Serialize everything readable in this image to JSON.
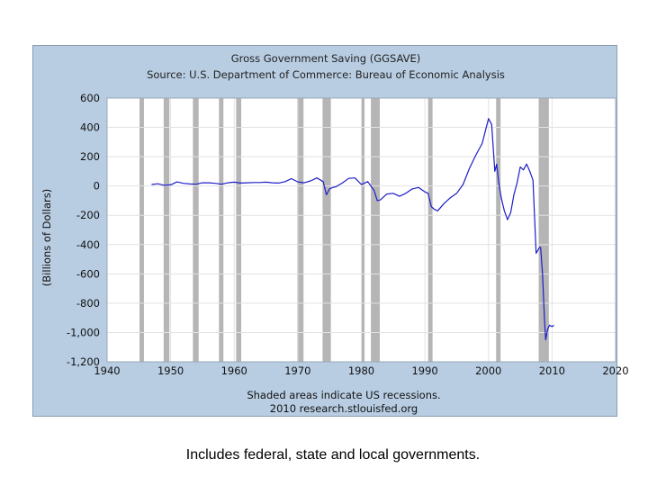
{
  "chart_data": {
    "type": "line",
    "title": "Gross Government Saving (GGSAVE)",
    "subtitle": "Source: U.S. Department of Commerce: Bureau of Economic Analysis",
    "ylabel": "(Billions of Dollars)",
    "xlabel": "",
    "xlim": [
      1940,
      2020
    ],
    "ylim": [
      -1200,
      600
    ],
    "x_ticks": [
      1940,
      1950,
      1960,
      1970,
      1980,
      1990,
      2000,
      2010,
      2020
    ],
    "y_ticks": [
      600,
      400,
      200,
      0,
      -200,
      -400,
      -600,
      -800,
      -1000,
      -1200
    ],
    "y_tick_labels": [
      "600",
      "400",
      "200",
      "0",
      "-200",
      "-400",
      "-600",
      "-800",
      "-1,000",
      "-1,200"
    ],
    "grid": true,
    "line_color": "#1d1dc8",
    "recession_color": "#b5b5b5",
    "recessions": [
      [
        1945.1,
        1945.8
      ],
      [
        1948.9,
        1949.8
      ],
      [
        1953.5,
        1954.4
      ],
      [
        1957.6,
        1958.3
      ],
      [
        1960.3,
        1961.1
      ],
      [
        1969.9,
        1970.9
      ],
      [
        1973.9,
        1975.2
      ],
      [
        1980.0,
        1980.5
      ],
      [
        1981.5,
        1982.9
      ],
      [
        1990.5,
        1991.2
      ],
      [
        2001.2,
        2001.9
      ],
      [
        2007.9,
        2009.5
      ]
    ],
    "series": [
      {
        "x": [
          1947,
          1948,
          1949,
          1950,
          1951,
          1952,
          1953,
          1954,
          1955,
          1956,
          1957,
          1958,
          1959,
          1960,
          1961,
          1962,
          1963,
          1964,
          1965,
          1966,
          1967,
          1968,
          1969,
          1970,
          1971,
          1972,
          1973,
          1974,
          1974.5,
          1975,
          1975.5,
          1976,
          1977,
          1978,
          1979,
          1980,
          1981,
          1982,
          1982.5,
          1983,
          1984,
          1985,
          1986,
          1987,
          1988,
          1989,
          1990,
          1990.5,
          1991,
          1991.5,
          1992,
          1993,
          1994,
          1995,
          1996,
          1997,
          1998,
          1999,
          2000,
          2000.5,
          2001,
          2001.3,
          2001.6,
          2002,
          2002.5,
          2003,
          2003.5,
          2004,
          2004.5,
          2005,
          2005.5,
          2006,
          2006.5,
          2007,
          2007.5,
          2008,
          2008.2,
          2008.5,
          2008.8,
          2009,
          2009.3,
          2009.6,
          2010,
          2010.3
        ],
        "y": [
          10,
          15,
          5,
          8,
          28,
          18,
          14,
          12,
          22,
          22,
          18,
          12,
          22,
          26,
          20,
          22,
          24,
          24,
          26,
          22,
          20,
          30,
          50,
          28,
          22,
          35,
          55,
          30,
          -60,
          -20,
          -10,
          -5,
          20,
          52,
          55,
          10,
          30,
          -30,
          -100,
          -95,
          -55,
          -50,
          -70,
          -50,
          -20,
          -10,
          -40,
          -50,
          -140,
          -160,
          -170,
          -120,
          -80,
          -50,
          10,
          120,
          210,
          290,
          460,
          420,
          100,
          150,
          30,
          -80,
          -170,
          -230,
          -180,
          -60,
          20,
          130,
          110,
          150,
          100,
          40,
          -460,
          -420,
          -420,
          -600,
          -900,
          -1050,
          -980,
          -950,
          -960,
          -950
        ]
      }
    ],
    "notes": [
      "Shaded areas indicate US recessions.",
      "2010 research.stlouisfed.org"
    ]
  },
  "caption": "Includes federal, state and local governments."
}
